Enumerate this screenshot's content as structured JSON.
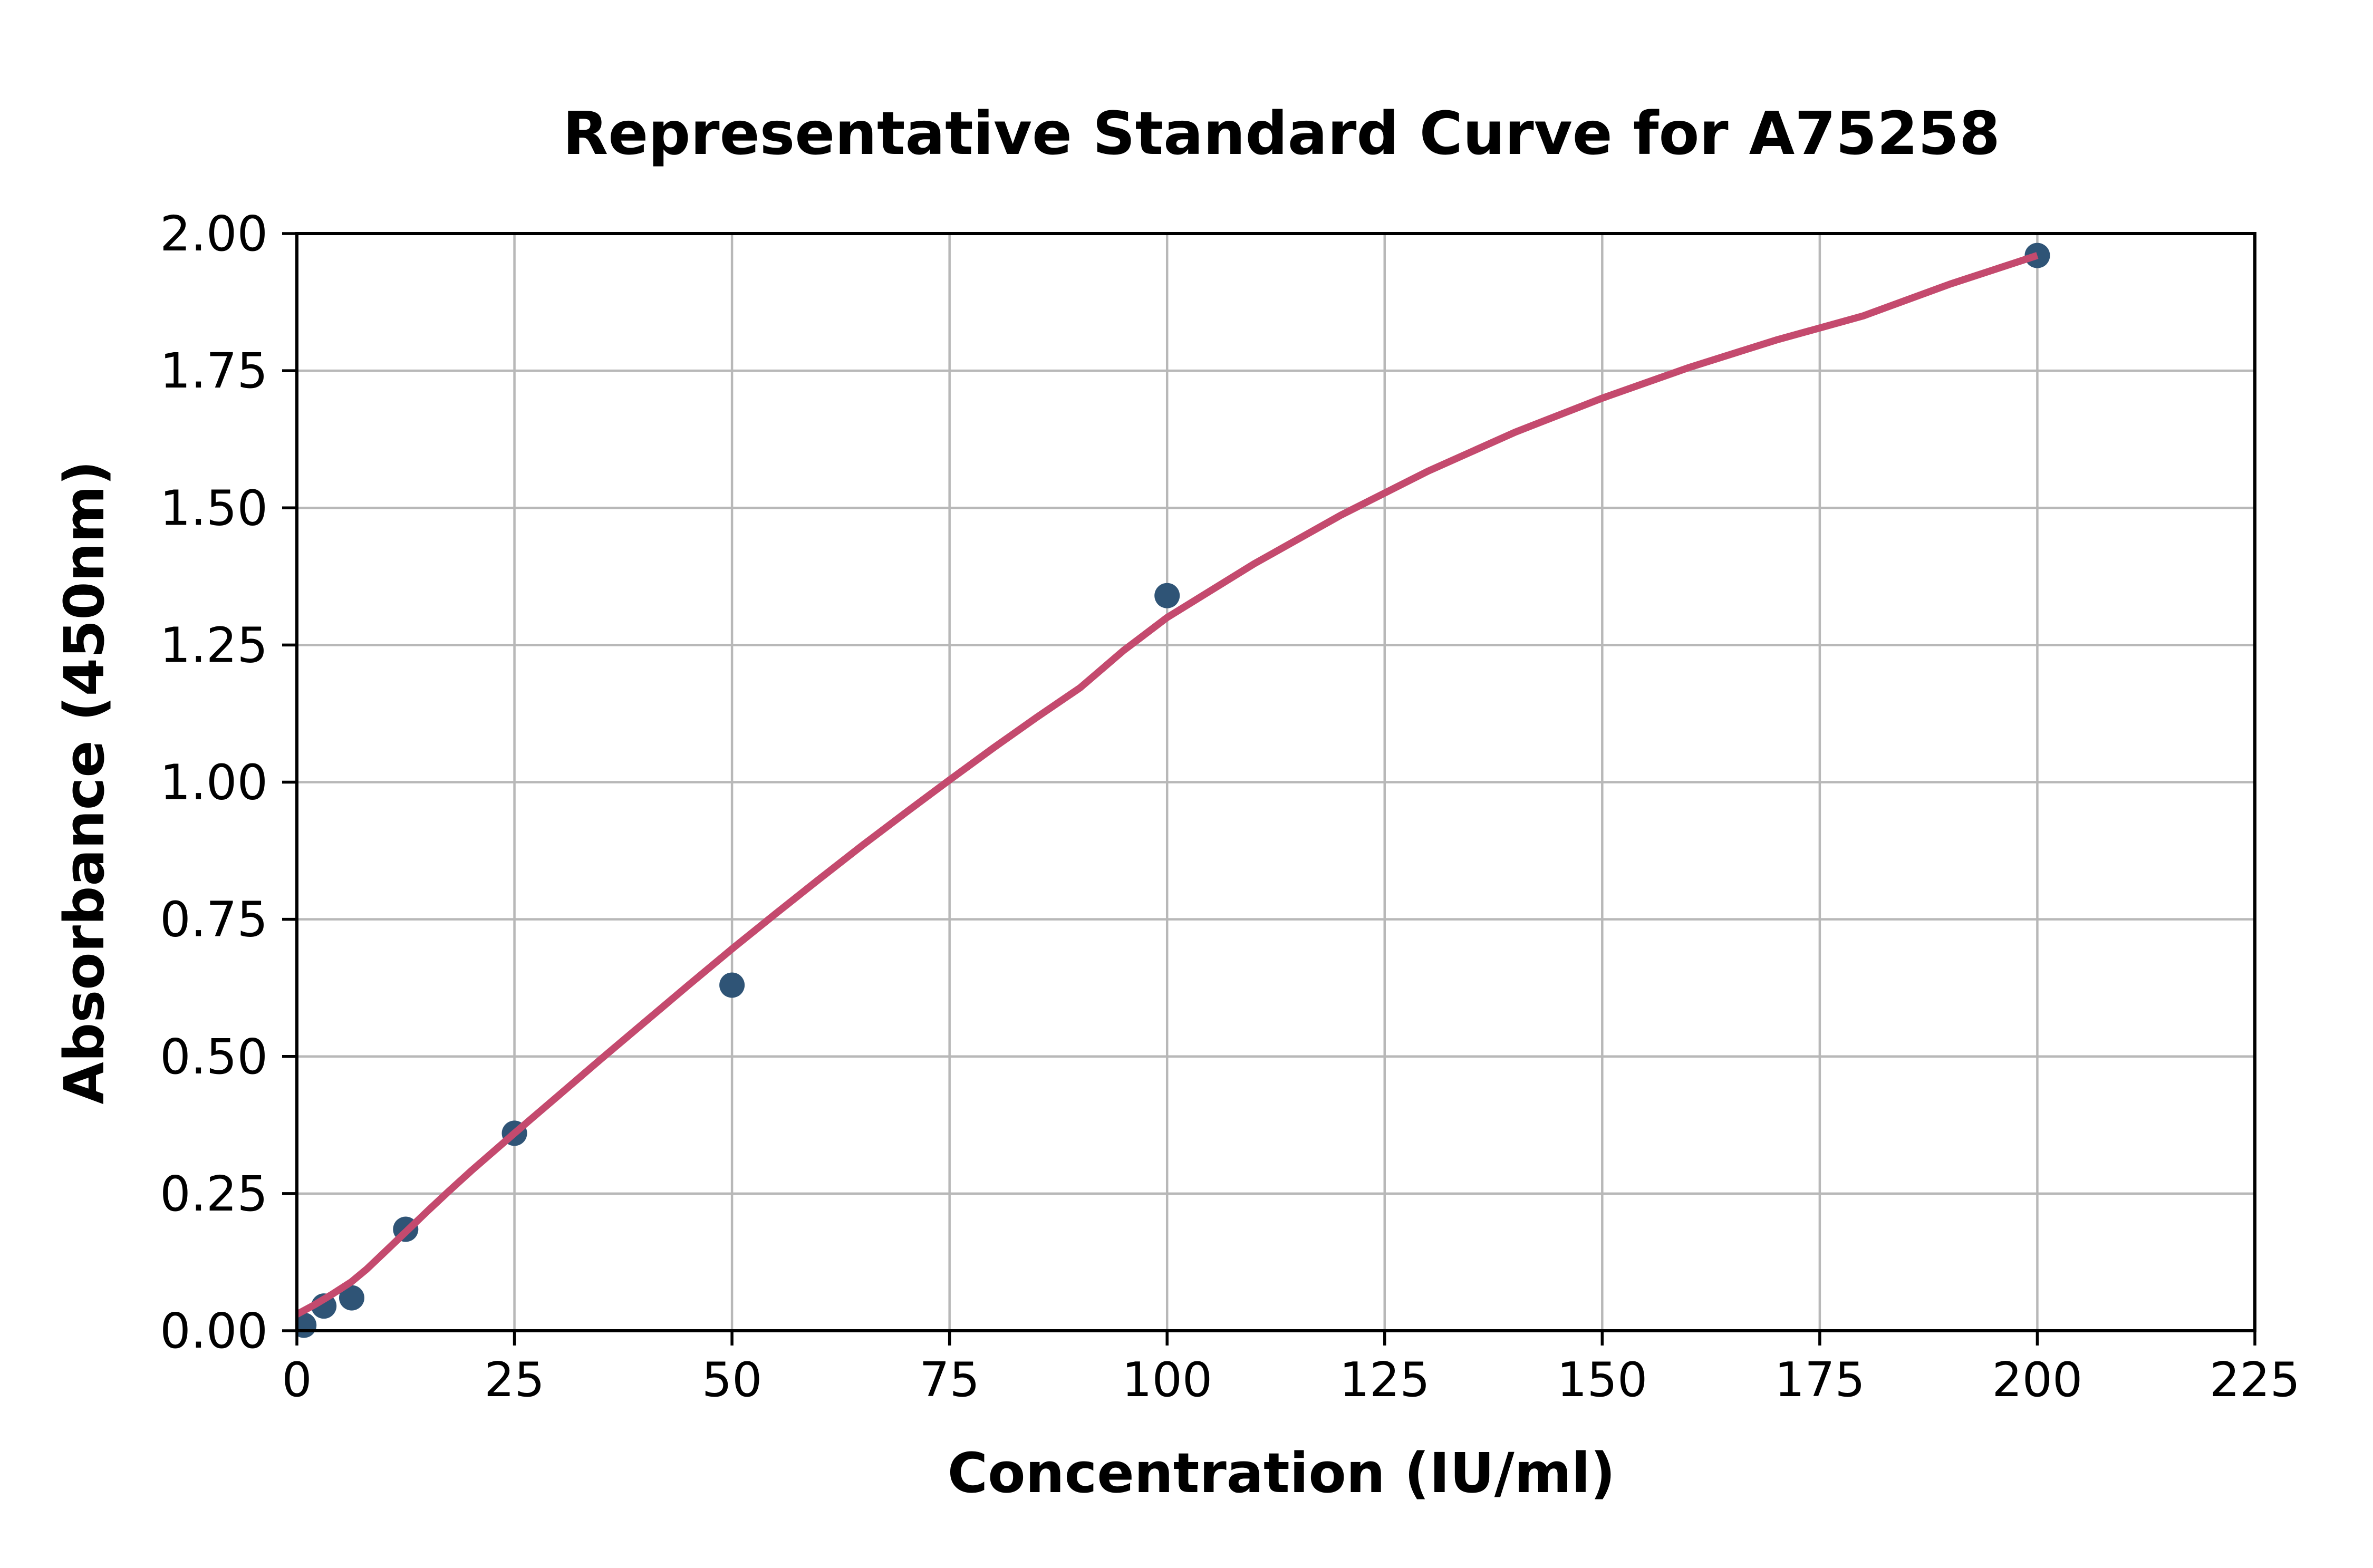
{
  "figure": {
    "background": "#FFFFFF"
  },
  "chart_data": {
    "type": "scatter",
    "title": "Representative Standard Curve for A75258",
    "xlabel": "Concentration (IU/ml)",
    "ylabel": "Absorbance (450nm)",
    "xlim": [
      0,
      225
    ],
    "ylim": [
      0,
      2.0
    ],
    "x_ticks": [
      0,
      25,
      50,
      75,
      100,
      125,
      150,
      175,
      200,
      225
    ],
    "x_tick_labels": [
      "0",
      "25",
      "50",
      "75",
      "100",
      "125",
      "150",
      "175",
      "200",
      "225"
    ],
    "y_ticks": [
      0,
      0.25,
      0.5,
      0.75,
      1.0,
      1.25,
      1.5,
      1.75,
      2.0
    ],
    "y_tick_labels": [
      "0.00",
      "0.25",
      "0.50",
      "0.75",
      "1.00",
      "1.25",
      "1.50",
      "1.75",
      "2.00"
    ],
    "grid": true,
    "legend": "none",
    "series": [
      {
        "name": "standard-points",
        "type": "scatter",
        "color": "#2F5476",
        "points": [
          {
            "x": 0.8,
            "y": 0.01
          },
          {
            "x": 3.1,
            "y": 0.045
          },
          {
            "x": 6.3,
            "y": 0.06
          },
          {
            "x": 12.5,
            "y": 0.185
          },
          {
            "x": 25,
            "y": 0.36
          },
          {
            "x": 50,
            "y": 0.63
          },
          {
            "x": 100,
            "y": 1.34
          },
          {
            "x": 200,
            "y": 1.96
          }
        ]
      },
      {
        "name": "fit-curve",
        "type": "line",
        "color": "#C44A6E",
        "x": [
          0,
          2,
          4,
          6.25,
          8,
          10,
          12.5,
          15,
          17.5,
          20,
          25,
          30,
          35,
          40,
          45,
          50,
          55,
          60,
          65,
          70,
          75,
          80,
          85,
          90,
          95,
          100,
          110,
          120,
          130,
          140,
          150,
          160,
          170,
          180,
          190,
          200
        ],
        "y": [
          0.03,
          0.047,
          0.066,
          0.089,
          0.112,
          0.142,
          0.18,
          0.218,
          0.255,
          0.291,
          0.36,
          0.428,
          0.496,
          0.563,
          0.63,
          0.696,
          0.76,
          0.823,
          0.885,
          0.945,
          1.004,
          1.062,
          1.118,
          1.172,
          1.24,
          1.3,
          1.398,
          1.487,
          1.567,
          1.638,
          1.7,
          1.756,
          1.806,
          1.85,
          1.908,
          1.96
        ]
      }
    ],
    "colors": {
      "background": "#FFFFFF",
      "points": "#2F5476",
      "curve": "#C44A6E",
      "grid": "#B8B8B8",
      "axis": "#000000",
      "text": "#000000"
    }
  }
}
